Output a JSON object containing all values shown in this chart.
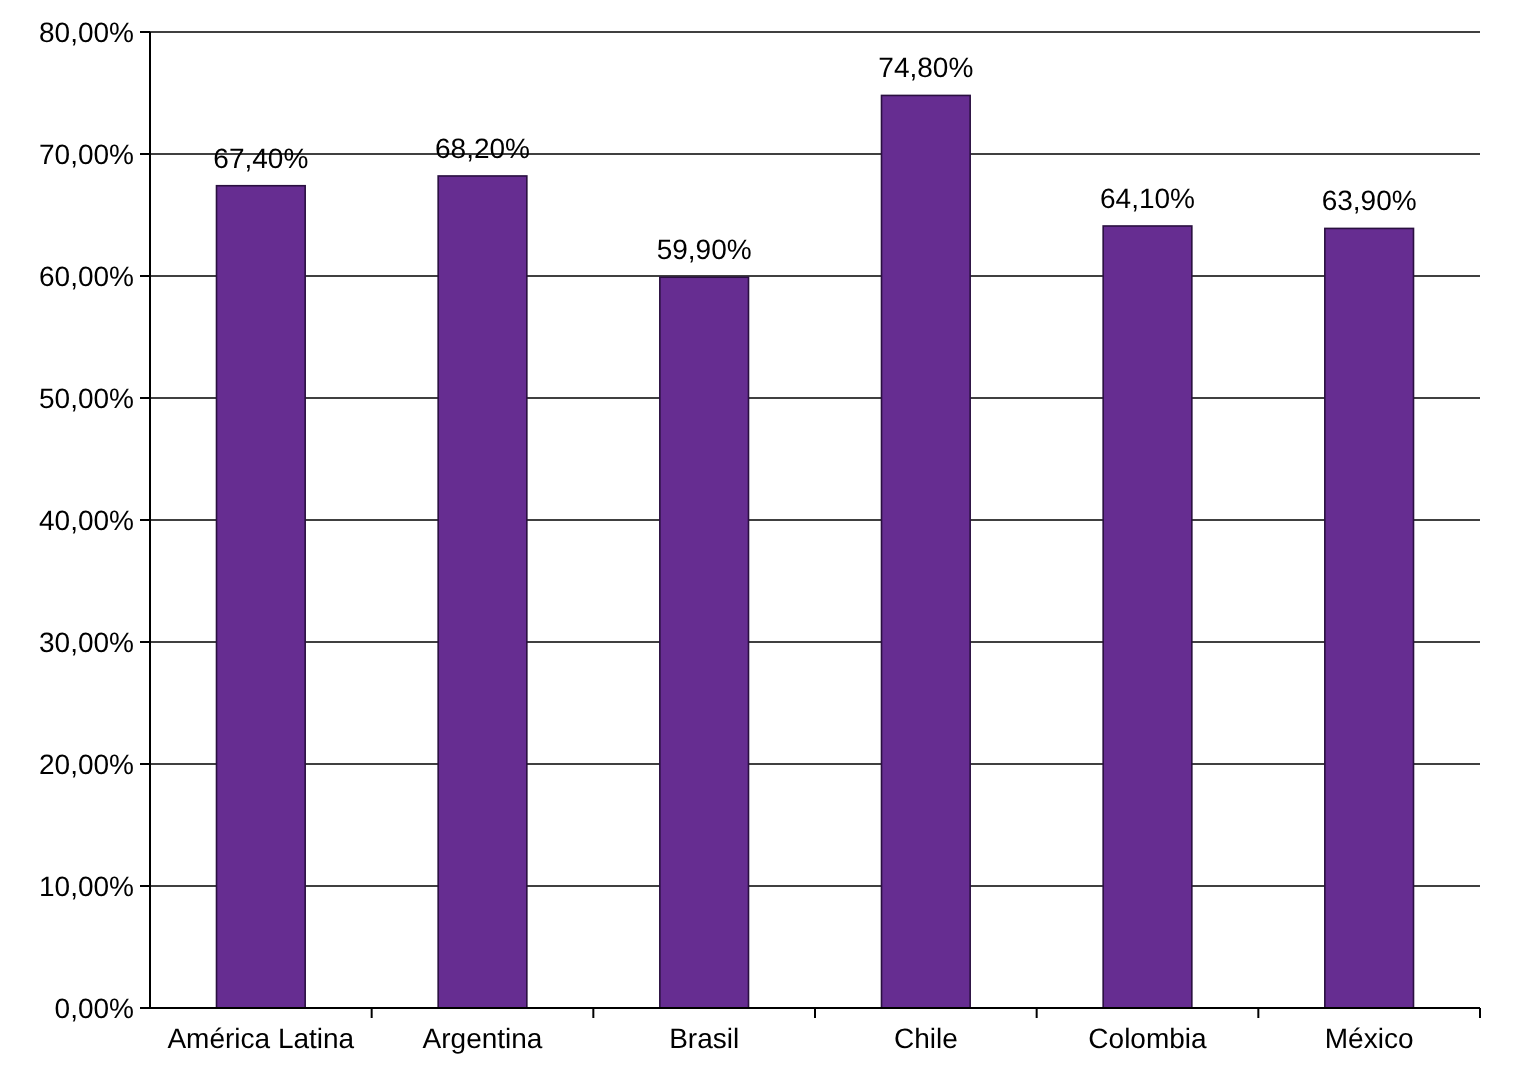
{
  "chart_data": {
    "type": "bar",
    "categories": [
      "América Latina",
      "Argentina",
      "Brasil",
      "Chile",
      "Colombia",
      "México"
    ],
    "values": [
      67.4,
      68.2,
      59.9,
      74.8,
      64.1,
      63.9
    ],
    "value_labels": [
      "67,40%",
      "68,20%",
      "59,90%",
      "74,80%",
      "64,10%",
      "63,90%"
    ],
    "color": "#662d91",
    "ylim": [
      0,
      80
    ],
    "yticks": [
      {
        "value": 0,
        "label": "0,00%"
      },
      {
        "value": 10,
        "label": "10,00%"
      },
      {
        "value": 20,
        "label": "20,00%"
      },
      {
        "value": 30,
        "label": "30,00%"
      },
      {
        "value": 40,
        "label": "40,00%"
      },
      {
        "value": 50,
        "label": "50,00%"
      },
      {
        "value": 60,
        "label": "60,00%"
      },
      {
        "value": 70,
        "label": "70,00%"
      },
      {
        "value": 80,
        "label": "80,00%"
      }
    ],
    "grid": "y"
  }
}
